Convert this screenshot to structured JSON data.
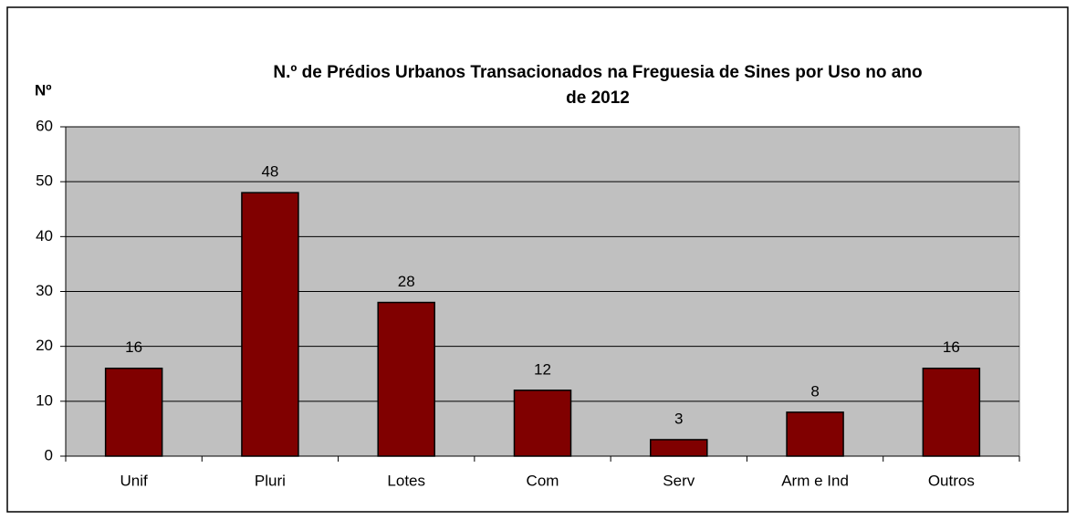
{
  "chart_data": {
    "type": "bar",
    "title": [
      "N.º de Prédios Urbanos Transacionados na Freguesia de Sines  por Uso no ano",
      "de 2012"
    ],
    "y_label": "Nº",
    "categories": [
      "Unif",
      "Pluri",
      "Lotes",
      "Com",
      "Serv",
      "Arm e Ind",
      "Outros"
    ],
    "values": [
      16,
      48,
      28,
      12,
      3,
      8,
      16
    ],
    "color": "#800000",
    "ylim": [
      0,
      60
    ],
    "yticks": [
      0,
      10,
      20,
      30,
      40,
      50,
      60
    ],
    "grid": true
  }
}
